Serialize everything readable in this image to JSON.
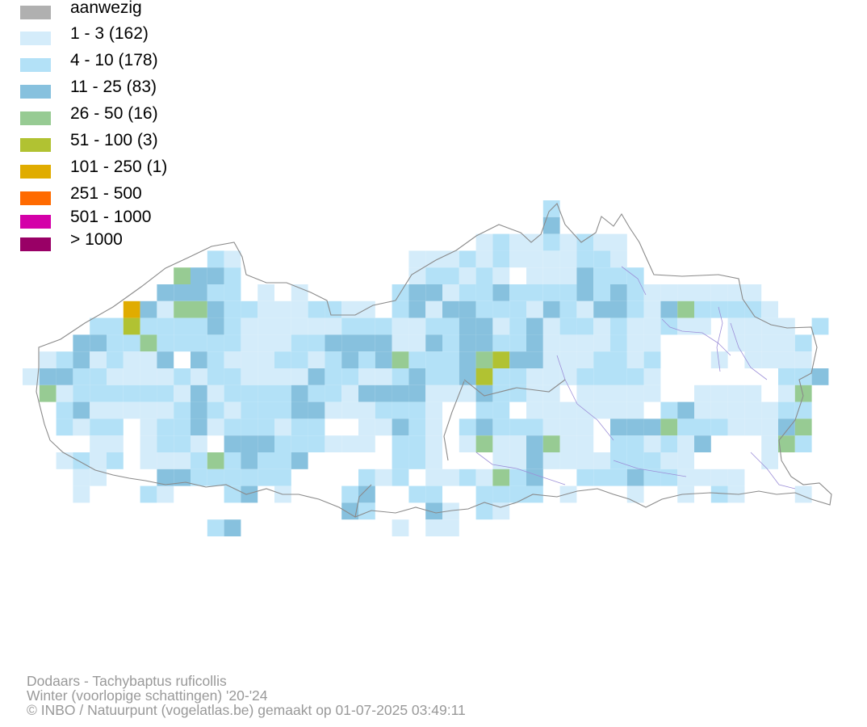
{
  "legend": {
    "items": [
      {
        "label": "aanwezig",
        "color": "#b0b0b0"
      },
      {
        "label": "1 - 3 (162)",
        "color": "#d4ecfa"
      },
      {
        "label": "4 - 10 (178)",
        "color": "#b3e1f7"
      },
      {
        "label": "11 - 25 (83)",
        "color": "#87c1de"
      },
      {
        "label": "26 - 50 (16)",
        "color": "#97cb93"
      },
      {
        "label": "51 - 100 (3)",
        "color": "#b1c232"
      },
      {
        "label": "101 - 250 (1)",
        "color": "#e0ac00"
      },
      {
        "label": "251 - 500",
        "color": "#ff6a00"
      },
      {
        "label": "501 - 1000",
        "color": "#d400a8"
      },
      {
        "label": "> 1000",
        "color": "#990066"
      }
    ]
  },
  "credits": {
    "species": "Dodaars - Tachybaptus ruficollis",
    "period": "Winter (voorlopige schattingen) '20-'24",
    "copyright": "© INBO / Natuurpunt (vogelatlas.be) gemaakt op 01-07-2025 03:49:11"
  },
  "map_colors": {
    "border": "#8a8a8a",
    "river": "#9c8fd8"
  }
}
